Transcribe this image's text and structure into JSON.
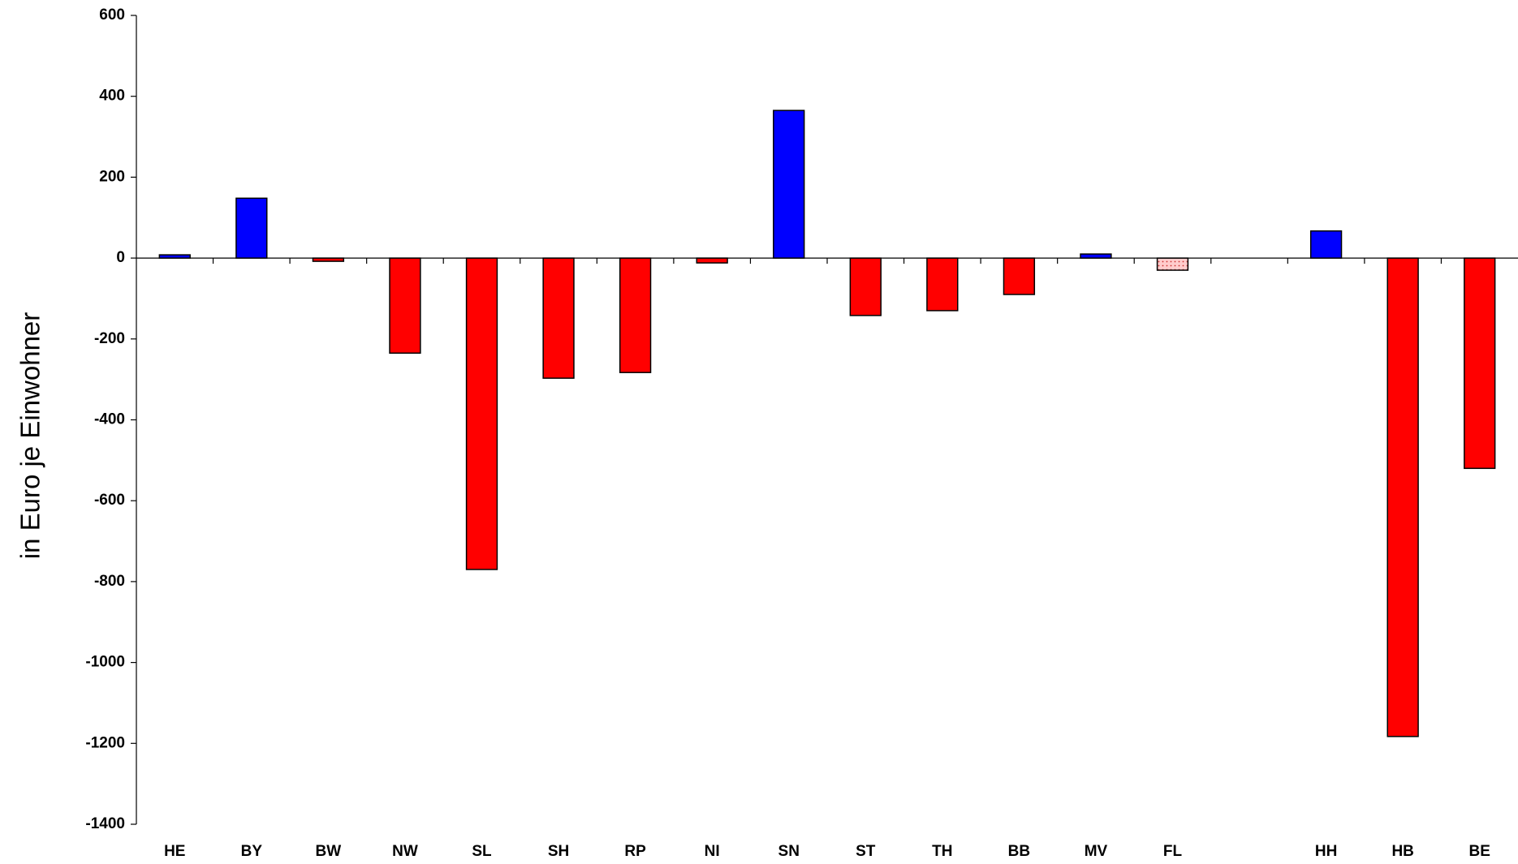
{
  "chart_data": {
    "type": "bar",
    "y_label": "in Euro je Einwohner",
    "categories": [
      "HE",
      "BY",
      "BW",
      "NW",
      "SL",
      "SH",
      "RP",
      "NI",
      "SN",
      "ST",
      "TH",
      "BB",
      "MV",
      "FL",
      null,
      "HH",
      "HB",
      "BE"
    ],
    "values": [
      8,
      148,
      -8,
      -235,
      -770,
      -297,
      -283,
      -12,
      365,
      -142,
      -130,
      -90,
      10,
      -30,
      null,
      67,
      -1183,
      -520
    ],
    "colors": [
      "#0000ff",
      "#0000ff",
      "#ff0000",
      "#ff0000",
      "#ff0000",
      "#ff0000",
      "#ff0000",
      "#ff0000",
      "#0000ff",
      "#ff0000",
      "#ff0000",
      "#ff0000",
      "#0000ff",
      "#ffcccc",
      null,
      "#0000ff",
      "#ff0000",
      "#ff0000"
    ],
    "ylim": [
      -1400,
      600
    ],
    "yticks": [
      -1400,
      -1200,
      -1000,
      -800,
      -600,
      -400,
      -200,
      0,
      200,
      400,
      600
    ],
    "grid": false
  }
}
